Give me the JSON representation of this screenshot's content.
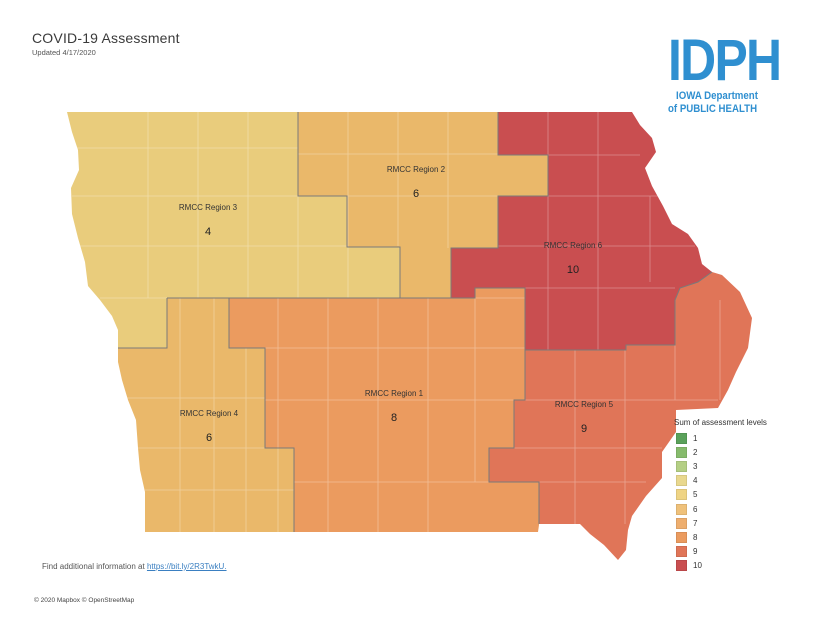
{
  "header": {
    "title": "COVID-19 Assessment",
    "subtitle": "Updated 4/17/2020"
  },
  "logo": {
    "letters": "IDPH",
    "line1": "IOWA Department",
    "line2": "of PUBLIC HEALTH",
    "color": "#2f8fd0"
  },
  "regions": [
    {
      "label": "RMCC Region 3",
      "value": "4",
      "fill": "#e9cc7c"
    },
    {
      "label": "RMCC Region 2",
      "value": "6",
      "fill": "#eab86a"
    },
    {
      "label": "RMCC Region 6",
      "value": "10",
      "fill": "#c94e50"
    },
    {
      "label": "RMCC Region 4",
      "value": "6",
      "fill": "#eab86a"
    },
    {
      "label": "RMCC Region 1",
      "value": "8",
      "fill": "#eb9b5f"
    },
    {
      "label": "RMCC Region 5",
      "value": "9",
      "fill": "#e07558"
    }
  ],
  "legend": {
    "title": "Sum of assessment levels",
    "items": [
      {
        "label": "1",
        "color": "#5aa15a"
      },
      {
        "label": "2",
        "color": "#86bb6c"
      },
      {
        "label": "3",
        "color": "#b4cf84"
      },
      {
        "label": "4",
        "color": "#e9d88e"
      },
      {
        "label": "5",
        "color": "#efd484"
      },
      {
        "label": "6",
        "color": "#efc17a"
      },
      {
        "label": "7",
        "color": "#eeae6e"
      },
      {
        "label": "8",
        "color": "#eb9b5f"
      },
      {
        "label": "9",
        "color": "#e07558"
      },
      {
        "label": "10",
        "color": "#c94e50"
      }
    ]
  },
  "footer": {
    "info_text": "Find additional information at ",
    "info_link": "https://bit.ly/2R3TwkU.",
    "attribution": "© 2020 Mapbox © OpenStreetMap"
  }
}
